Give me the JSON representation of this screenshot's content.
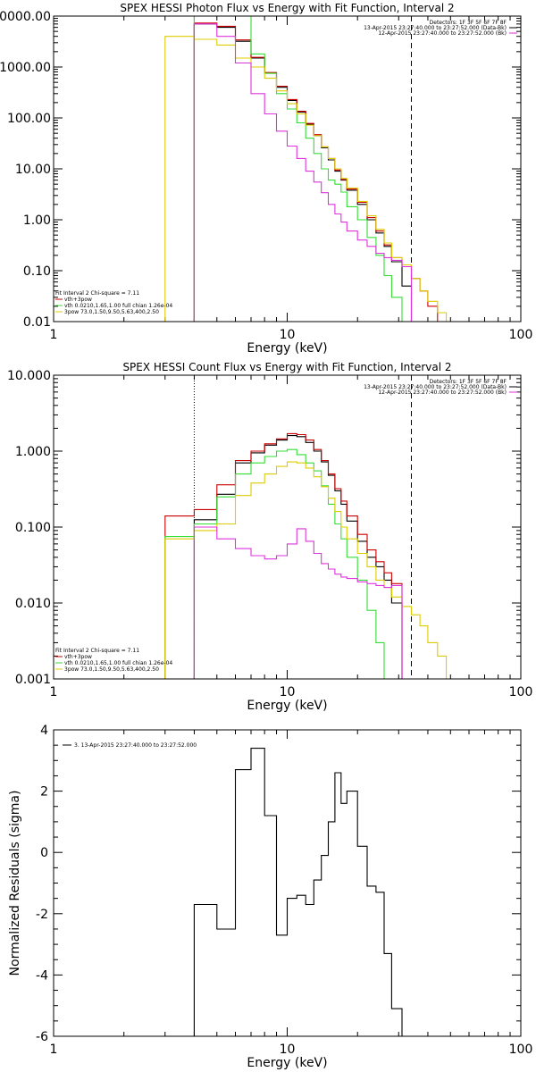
{
  "chart_data": [
    {
      "type": "line",
      "title": "SPEX HESSI Photon Flux vs Energy with Fit Function, Interval 2",
      "xlabel": "Energy (keV)",
      "ylabel": "",
      "xlim": [
        1,
        100
      ],
      "ylim": [
        0.01,
        10000
      ],
      "xscale": "log",
      "yscale": "log",
      "xtick_labels": [
        "1",
        "10",
        "100"
      ],
      "ytick_labels": [
        "0.01",
        "0.10",
        "1.00",
        "10.00",
        "100.00",
        "1000.00",
        "10000.00"
      ],
      "edges": [
        3.0,
        4.0,
        5.0,
        6.0,
        7.0,
        8.0,
        9.0,
        10.0,
        11.0,
        12.0,
        13.0,
        14.0,
        15.0,
        16.0,
        17.0,
        18.0,
        20.0,
        22.0,
        24.0,
        26.0,
        28.0,
        31.0,
        34.0,
        37.0,
        40.0,
        44.0,
        48.0,
        53.0
      ],
      "series": [
        {
          "color": "#000000",
          "values": [
            null,
            7000,
            6000,
            3200,
            1500,
            760,
            400,
            220,
            130,
            75,
            45,
            26,
            15,
            9,
            6,
            3.8,
            2.0,
            1.0,
            0.55,
            0.3,
            0.15,
            0.05
          ]
        },
        {
          "color": "#cc0000",
          "values": [
            null,
            7300,
            6300,
            3400,
            1550,
            780,
            420,
            230,
            135,
            78,
            47,
            27,
            16,
            9.5,
            6.2,
            4.0,
            2.2,
            1.1,
            0.6,
            0.32,
            0.18,
            0.12,
            0.07,
            0.04,
            0.02
          ]
        },
        {
          "color": "#33dd33",
          "values": [
            null,
            10000,
            10000,
            10000,
            1800,
            750,
            300,
            150,
            80,
            40,
            20,
            10,
            6,
            5,
            3.5,
            1.8,
            1.0,
            0.45,
            0.2,
            0.08,
            0.03,
            0.01
          ]
        },
        {
          "color": "#ddcc00",
          "values": [
            4000,
            3500,
            2700,
            1500,
            1000,
            600,
            340,
            190,
            120,
            72,
            45,
            27,
            16,
            10,
            6.5,
            4.2,
            2.3,
            1.2,
            0.65,
            0.35,
            0.18,
            0.13,
            0.07,
            0.04,
            0.025,
            0.015,
            0.01
          ]
        },
        {
          "color": "#dd33dd",
          "values": [
            null,
            7000,
            4000,
            1200,
            300,
            120,
            55,
            28,
            16,
            9,
            5.5,
            3.4,
            2.0,
            1.3,
            0.9,
            0.6,
            0.4,
            0.3,
            0.22,
            0.18,
            0.16,
            0.12
          ]
        }
      ],
      "vlines": [
        {
          "x": 4.0,
          "style": "dotted",
          "color": "#dd33dd"
        },
        {
          "x": 34.0,
          "style": "dashed",
          "color": "#000000"
        }
      ],
      "legend_top_right": [
        {
          "text": "Detectors: 1F 3F 5F 6F 7F 8F",
          "color": ""
        },
        {
          "text": "13-Apr-2015 23:27:40.000 to 23:27:52.000 (Data-Bk)",
          "color": "#000000"
        },
        {
          "text": "12-Apr-2015 23:27:40.000 to 23:27:52.000 (Bk)",
          "color": "#dd33dd"
        }
      ],
      "legend_bottom_left": [
        {
          "text": "Fit Interval 2   Chi-square = 7.11",
          "color": ""
        },
        {
          "text": "vth+3pow",
          "color": "#cc0000"
        },
        {
          "text": "vth 0.0210,1.65,1.00  full chian 1.26e-04",
          "color": "#33dd33"
        },
        {
          "text": "3pow 73.0,1.50,9.50,5.63,400,2.50",
          "color": "#ddcc00"
        }
      ]
    },
    {
      "type": "line",
      "title": "SPEX HESSI Count Flux vs Energy with Fit Function, Interval 2",
      "xlabel": "Energy (keV)",
      "ylabel": "",
      "xlim": [
        1,
        100
      ],
      "ylim": [
        0.001,
        10
      ],
      "xscale": "log",
      "yscale": "log",
      "xtick_labels": [
        "1",
        "10",
        "100"
      ],
      "ytick_labels": [
        "0.001",
        "0.010",
        "0.100",
        "1.000",
        "10.000"
      ],
      "edges": [
        3.0,
        4.0,
        5.0,
        6.0,
        7.0,
        8.0,
        9.0,
        10.0,
        11.0,
        12.0,
        13.0,
        14.0,
        15.0,
        16.0,
        17.0,
        18.0,
        20.0,
        22.0,
        24.0,
        26.0,
        28.0,
        31.0,
        34.0,
        37.0,
        40.0,
        44.0,
        48.0,
        53.0
      ],
      "series": [
        {
          "color": "#000000",
          "values": [
            null,
            0.125,
            0.27,
            0.7,
            0.95,
            1.2,
            1.4,
            1.6,
            1.55,
            1.3,
            1.0,
            0.72,
            0.48,
            0.3,
            0.2,
            0.12,
            0.065,
            0.04,
            0.03,
            0.02,
            0.01
          ]
        },
        {
          "color": "#cc0000",
          "values": [
            0.14,
            0.17,
            0.36,
            0.75,
            1.0,
            1.25,
            1.45,
            1.7,
            1.65,
            1.4,
            1.05,
            0.75,
            0.5,
            0.32,
            0.22,
            0.14,
            0.08,
            0.05,
            0.035,
            0.025,
            0.018
          ]
        },
        {
          "color": "#33dd33",
          "values": [
            0.075,
            0.11,
            0.25,
            0.5,
            0.7,
            0.85,
            1.0,
            1.05,
            0.9,
            0.7,
            0.55,
            0.35,
            0.2,
            0.11,
            0.07,
            0.04,
            0.02,
            0.008,
            0.003,
            0.001
          ]
        },
        {
          "color": "#ddcc00",
          "values": [
            0.07,
            0.09,
            0.11,
            0.26,
            0.38,
            0.5,
            0.63,
            0.72,
            0.7,
            0.6,
            0.46,
            0.34,
            0.24,
            0.16,
            0.1,
            0.07,
            0.045,
            0.03,
            0.02,
            0.016,
            0.012,
            0.009,
            0.007,
            0.005,
            0.003,
            0.002,
            0.001
          ]
        },
        {
          "color": "#dd33dd",
          "values": [
            null,
            0.1,
            0.07,
            0.052,
            0.042,
            0.038,
            0.042,
            0.06,
            0.095,
            0.065,
            0.045,
            0.033,
            0.028,
            0.024,
            0.022,
            0.021,
            0.019,
            0.018,
            0.017,
            0.016,
            0.017
          ]
        }
      ],
      "vlines": [
        {
          "x": 4.0,
          "style": "dotted",
          "color": "#000000"
        },
        {
          "x": 34.0,
          "style": "dashed",
          "color": "#000000"
        }
      ],
      "legend_top_right": [
        {
          "text": "Detectors: 1F 3F 5F 6F 7F 8F",
          "color": ""
        },
        {
          "text": "13-Apr-2015 23:27:40.000 to 23:27:52.000 (Data-Bk)",
          "color": "#000000"
        },
        {
          "text": "12-Apr-2015 23:27:40.000 to 23:27:52.000 (Bk)",
          "color": "#dd33dd"
        }
      ],
      "legend_bottom_left": [
        {
          "text": "Fit Interval 2   Chi-square = 7.11",
          "color": ""
        },
        {
          "text": "vth+3pow",
          "color": "#cc0000"
        },
        {
          "text": "vth 0.0210,1.65,1.00  full chian 1.26e-04",
          "color": "#33dd33"
        },
        {
          "text": "3pow 73.0,1.50,9.50,5.63,400,2.50",
          "color": "#ddcc00"
        }
      ]
    },
    {
      "type": "line",
      "title": "",
      "xlabel": "Energy (keV)",
      "ylabel": "Normalized Residuals (sigma)",
      "xlim": [
        1,
        100
      ],
      "ylim": [
        -6,
        4
      ],
      "xscale": "log",
      "yscale": "linear",
      "xtick_labels": [
        "1",
        "10",
        "100"
      ],
      "ytick_labels": [
        "-6",
        "-4",
        "-2",
        "0",
        "2",
        "4"
      ],
      "edges": [
        4.0,
        5.0,
        6.0,
        7.0,
        8.0,
        9.0,
        10.0,
        11.0,
        12.0,
        13.0,
        14.0,
        15.0,
        16.0,
        17.0,
        18.0,
        20.0,
        22.0,
        24.0,
        26.0,
        28.0,
        31.0,
        34.0
      ],
      "series": [
        {
          "color": "#000000",
          "values": [
            -1.7,
            -2.5,
            2.7,
            3.4,
            1.2,
            -2.7,
            -1.5,
            -1.4,
            -1.7,
            -0.9,
            -0.1,
            1.0,
            2.6,
            1.6,
            2.0,
            0.2,
            -1.1,
            -1.3,
            -3.3,
            -5.1,
            -6.0
          ]
        }
      ],
      "legend_top_left": [
        {
          "text": "3. 13-Apr-2015 23:27:40.000 to 23:27:52.000",
          "color": "#000000"
        }
      ]
    }
  ]
}
